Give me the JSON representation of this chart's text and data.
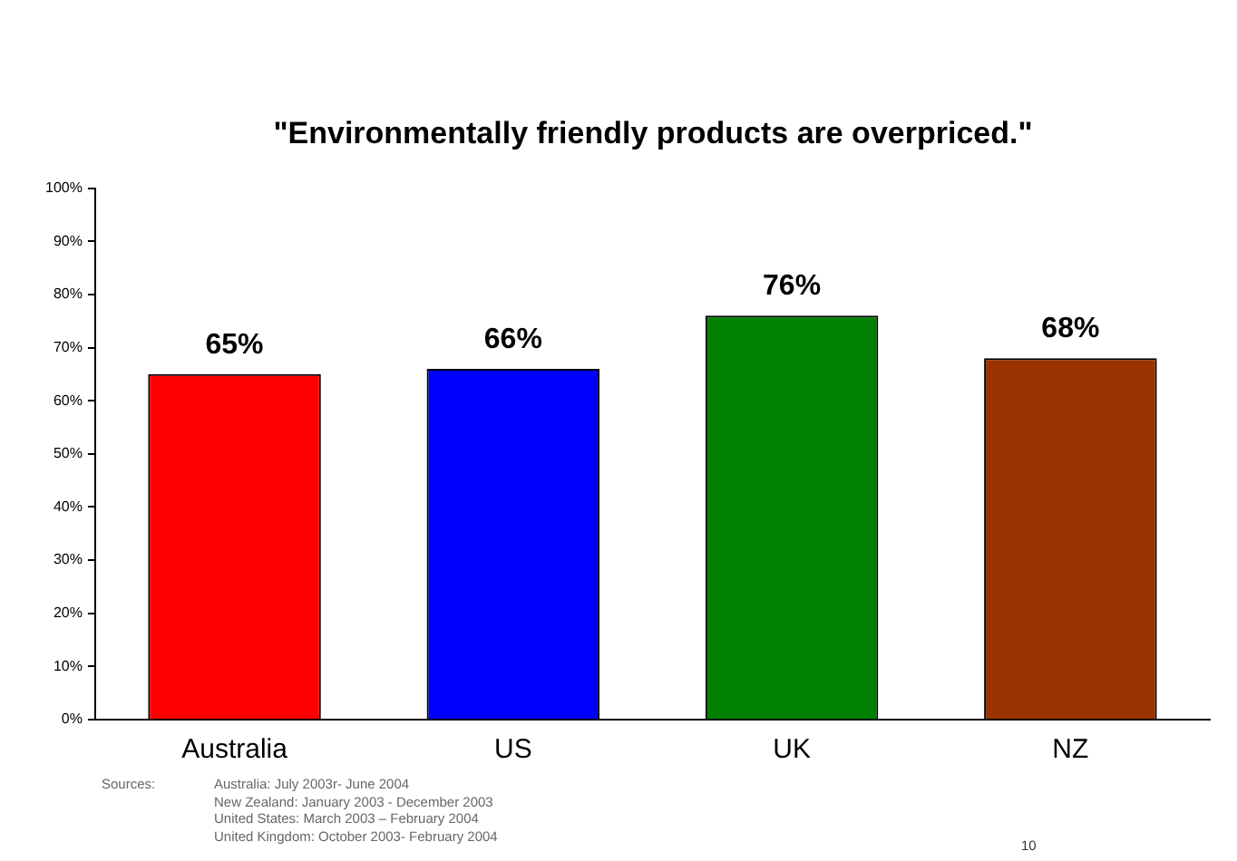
{
  "chart_data": {
    "type": "bar",
    "title": "\"Environmentally friendly products are overpriced.\"",
    "categories": [
      "Australia",
      "US",
      "UK",
      "NZ"
    ],
    "values": [
      65,
      66,
      76,
      68
    ],
    "colors": [
      "#ff0000",
      "#0000ff",
      "#008000",
      "#993300"
    ],
    "value_labels": [
      "65%",
      "66%",
      "76%",
      "68%"
    ],
    "ylim": [
      0,
      100
    ],
    "yticks": [
      {
        "value": 0,
        "label": "0%"
      },
      {
        "value": 10,
        "label": "10%"
      },
      {
        "value": 20,
        "label": "20%"
      },
      {
        "value": 30,
        "label": "30%"
      },
      {
        "value": 40,
        "label": "40%"
      },
      {
        "value": 50,
        "label": "50%"
      },
      {
        "value": 60,
        "label": "60%"
      },
      {
        "value": 70,
        "label": "70%"
      },
      {
        "value": 80,
        "label": "80%"
      },
      {
        "value": 90,
        "label": "90%"
      },
      {
        "value": 100,
        "label": "100%"
      }
    ],
    "grid": false,
    "legend": false,
    "annotations": [
      "Sources:",
      "Australia: July 2003r- June 2004",
      "New Zealand: January 2003 - December 2003",
      "United States: March 2003 – February 2004",
      "United Kingdom: October 2003- February 2004",
      "10"
    ]
  }
}
